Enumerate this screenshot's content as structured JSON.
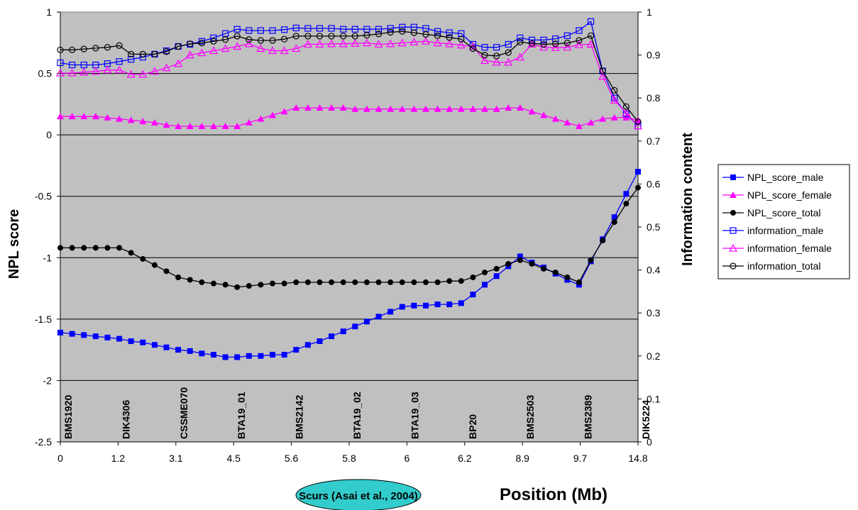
{
  "chart_data": {
    "type": "line",
    "title": "",
    "xlabel": "Position (Mb)",
    "ylabel": "NPL score",
    "y2label": "Information content",
    "ylim": [
      -2.5,
      1
    ],
    "y2lim": [
      0,
      1
    ],
    "yticks": [
      "-2.5",
      "-2",
      "-1.5",
      "-1",
      "-0.5",
      "0",
      "0.5",
      "1"
    ],
    "y2ticks": [
      "0",
      "0.1",
      "0.2",
      "0.3",
      "0.4",
      "0.5",
      "0.6",
      "0.7",
      "0.8",
      "0.9",
      "1"
    ],
    "plot_background": "#c0c0c0",
    "grid": true,
    "legend_position": "right",
    "x_tick_labels": [
      "0",
      "1.2",
      "3.1",
      "4.5",
      "5.6",
      "5.8",
      "6",
      "6.2",
      "8.9",
      "9.7",
      "14.8"
    ],
    "markers": [
      "BMS1920",
      "DIK4306",
      "CSSME070",
      "BTA19_01",
      "BMS2142",
      "BTA19_02",
      "BTA19_03",
      "BP20",
      "BMS2503",
      "BMS2389",
      "DIK5224"
    ],
    "annotation": {
      "text": "Scurs (Asai et al., 2004)",
      "fill": "#33cccc"
    },
    "series": [
      {
        "name": "NPL_score_male",
        "axis": "left",
        "color": "#0000ff",
        "marker": "filled-square",
        "values": [
          -1.61,
          -1.62,
          -1.63,
          -1.64,
          -1.65,
          -1.66,
          -1.68,
          -1.69,
          -1.71,
          -1.73,
          -1.75,
          -1.76,
          -1.78,
          -1.79,
          -1.81,
          -1.81,
          -1.8,
          -1.8,
          -1.79,
          -1.79,
          -1.75,
          -1.71,
          -1.68,
          -1.64,
          -1.6,
          -1.56,
          -1.52,
          -1.48,
          -1.44,
          -1.4,
          -1.39,
          -1.39,
          -1.38,
          -1.38,
          -1.37,
          -1.3,
          -1.22,
          -1.15,
          -1.07,
          -0.99,
          -1.04,
          -1.08,
          -1.13,
          -1.18,
          -1.22,
          -1.03,
          -0.85,
          -0.67,
          -0.48,
          -0.3
        ]
      },
      {
        "name": "NPL_score_female",
        "axis": "left",
        "color": "#ff00ff",
        "marker": "filled-triangle",
        "values": [
          0.15,
          0.15,
          0.15,
          0.15,
          0.14,
          0.13,
          0.12,
          0.11,
          0.1,
          0.08,
          0.07,
          0.07,
          0.07,
          0.07,
          0.07,
          0.07,
          0.1,
          0.13,
          0.16,
          0.19,
          0.22,
          0.22,
          0.22,
          0.22,
          0.22,
          0.21,
          0.21,
          0.21,
          0.21,
          0.21,
          0.21,
          0.21,
          0.21,
          0.21,
          0.21,
          0.21,
          0.21,
          0.21,
          0.22,
          0.22,
          0.19,
          0.16,
          0.13,
          0.1,
          0.07,
          0.1,
          0.13,
          0.14,
          0.14,
          0.12
        ]
      },
      {
        "name": "NPL_score_total",
        "axis": "left",
        "color": "#000000",
        "marker": "filled-circle",
        "values": [
          -0.92,
          -0.92,
          -0.92,
          -0.92,
          -0.92,
          -0.92,
          -0.96,
          -1.01,
          -1.06,
          -1.11,
          -1.16,
          -1.18,
          -1.2,
          -1.21,
          -1.22,
          -1.24,
          -1.23,
          -1.22,
          -1.21,
          -1.21,
          -1.2,
          -1.2,
          -1.2,
          -1.2,
          -1.2,
          -1.2,
          -1.2,
          -1.2,
          -1.2,
          -1.2,
          -1.2,
          -1.2,
          -1.2,
          -1.19,
          -1.19,
          -1.16,
          -1.12,
          -1.09,
          -1.05,
          -1.02,
          -1.05,
          -1.09,
          -1.12,
          -1.16,
          -1.2,
          -1.02,
          -0.86,
          -0.71,
          -0.56,
          -0.43
        ]
      },
      {
        "name": "information_male",
        "axis": "right",
        "color": "#0000ff",
        "marker": "open-square",
        "values": [
          0.882,
          0.877,
          0.877,
          0.877,
          0.88,
          0.885,
          0.89,
          0.895,
          0.902,
          0.91,
          0.92,
          0.925,
          0.932,
          0.94,
          0.95,
          0.96,
          0.957,
          0.957,
          0.957,
          0.959,
          0.963,
          0.962,
          0.962,
          0.962,
          0.96,
          0.96,
          0.96,
          0.96,
          0.962,
          0.965,
          0.965,
          0.962,
          0.955,
          0.952,
          0.95,
          0.925,
          0.918,
          0.918,
          0.925,
          0.94,
          0.935,
          0.935,
          0.938,
          0.945,
          0.957,
          0.978,
          0.863,
          0.8,
          0.763,
          0.735
        ]
      },
      {
        "name": "information_female",
        "axis": "right",
        "color": "#ff00ff",
        "marker": "open-triangle",
        "values": [
          0.858,
          0.858,
          0.86,
          0.862,
          0.865,
          0.865,
          0.855,
          0.855,
          0.862,
          0.87,
          0.88,
          0.9,
          0.905,
          0.91,
          0.915,
          0.92,
          0.926,
          0.915,
          0.91,
          0.91,
          0.915,
          0.925,
          0.925,
          0.926,
          0.926,
          0.927,
          0.928,
          0.925,
          0.926,
          0.928,
          0.93,
          0.932,
          0.928,
          0.926,
          0.923,
          0.92,
          0.887,
          0.883,
          0.883,
          0.895,
          0.925,
          0.918,
          0.917,
          0.918,
          0.924,
          0.925,
          0.85,
          0.795,
          0.765,
          0.735
        ]
      },
      {
        "name": "information_total",
        "axis": "right",
        "color": "#000000",
        "marker": "open-circle",
        "values": [
          0.912,
          0.912,
          0.914,
          0.916,
          0.918,
          0.922,
          0.902,
          0.902,
          0.902,
          0.908,
          0.92,
          0.926,
          0.928,
          0.932,
          0.936,
          0.944,
          0.936,
          0.934,
          0.934,
          0.937,
          0.944,
          0.944,
          0.944,
          0.944,
          0.944,
          0.944,
          0.946,
          0.949,
          0.953,
          0.955,
          0.952,
          0.948,
          0.945,
          0.941,
          0.937,
          0.915,
          0.9,
          0.898,
          0.906,
          0.93,
          0.927,
          0.925,
          0.926,
          0.928,
          0.934,
          0.945,
          0.863,
          0.818,
          0.78,
          0.745
        ]
      }
    ]
  }
}
